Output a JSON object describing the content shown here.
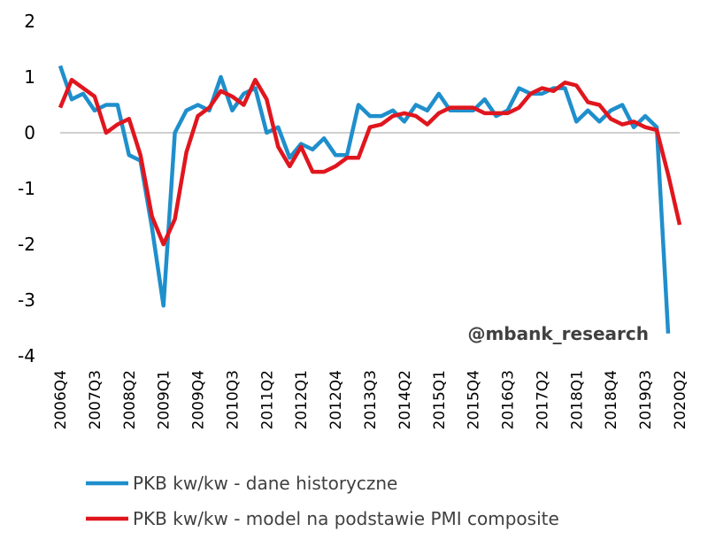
{
  "chart_data": {
    "type": "line",
    "watermark": "@mbank_research",
    "ylim": [
      -4,
      2
    ],
    "yticks": [
      "2",
      "1",
      "0",
      "-1",
      "-2",
      "-3",
      "-4"
    ],
    "grid": false,
    "legend_position": "bottom",
    "categories": [
      "2006Q4",
      "2007Q1",
      "2007Q2",
      "2007Q3",
      "2007Q4",
      "2008Q1",
      "2008Q2",
      "2008Q3",
      "2008Q4",
      "2009Q1",
      "2009Q2",
      "2009Q3",
      "2009Q4",
      "2010Q1",
      "2010Q2",
      "2010Q3",
      "2010Q4",
      "2011Q1",
      "2011Q2",
      "2011Q3",
      "2011Q4",
      "2012Q1",
      "2012Q2",
      "2012Q3",
      "2012Q4",
      "2013Q1",
      "2013Q2",
      "2013Q3",
      "2013Q4",
      "2014Q1",
      "2014Q2",
      "2014Q3",
      "2014Q4",
      "2015Q1",
      "2015Q2",
      "2015Q3",
      "2015Q4",
      "2016Q1",
      "2016Q2",
      "2016Q3",
      "2016Q4",
      "2017Q1",
      "2017Q2",
      "2017Q3",
      "2017Q4",
      "2018Q1",
      "2018Q2",
      "2018Q3",
      "2018Q4",
      "2019Q1",
      "2019Q2",
      "2019Q3",
      "2019Q4",
      "2020Q1",
      "2020Q2"
    ],
    "xtick_labels": [
      "2006Q4",
      "2007Q3",
      "2008Q2",
      "2009Q1",
      "2009Q4",
      "2010Q3",
      "2011Q2",
      "2012Q1",
      "2012Q4",
      "2013Q3",
      "2014Q2",
      "2015Q1",
      "2015Q4",
      "2016Q3",
      "2017Q2",
      "2018Q1",
      "2018Q4",
      "2019Q3",
      "2020Q2"
    ],
    "series": [
      {
        "name": "PKB kw/kw - dane historyczne",
        "color": "#1f8fcc",
        "values": [
          1.2,
          0.6,
          0.7,
          0.4,
          0.5,
          0.5,
          -0.4,
          -0.5,
          -1.7,
          -3.1,
          0.0,
          0.4,
          0.5,
          0.4,
          1.0,
          0.4,
          0.7,
          0.8,
          0.0,
          0.1,
          -0.45,
          -0.2,
          -0.3,
          -0.1,
          -0.4,
          -0.4,
          0.5,
          0.3,
          0.3,
          0.4,
          0.2,
          0.5,
          0.4,
          0.7,
          0.4,
          0.4,
          0.4,
          0.6,
          0.3,
          0.4,
          0.8,
          0.7,
          0.7,
          0.8,
          0.8,
          0.2,
          0.4,
          0.2,
          0.4,
          0.5,
          0.1,
          0.3,
          0.1,
          -3.6,
          null
        ]
      },
      {
        "name": "PKB kw/kw - model na podstawie PMI composite",
        "color": "#e0161e",
        "values": [
          0.45,
          0.95,
          0.8,
          0.65,
          0.0,
          0.15,
          0.25,
          -0.4,
          -1.5,
          -2.0,
          -1.55,
          -0.35,
          0.3,
          0.45,
          0.75,
          0.65,
          0.5,
          0.95,
          0.6,
          -0.25,
          -0.6,
          -0.25,
          -0.7,
          -0.7,
          -0.6,
          -0.45,
          -0.45,
          0.1,
          0.15,
          0.3,
          0.35,
          0.3,
          0.15,
          0.35,
          0.45,
          0.45,
          0.45,
          0.35,
          0.35,
          0.35,
          0.45,
          0.7,
          0.8,
          0.75,
          0.9,
          0.85,
          0.55,
          0.5,
          0.25,
          0.15,
          0.2,
          0.1,
          0.05,
          -0.75,
          -1.65
        ]
      }
    ]
  }
}
